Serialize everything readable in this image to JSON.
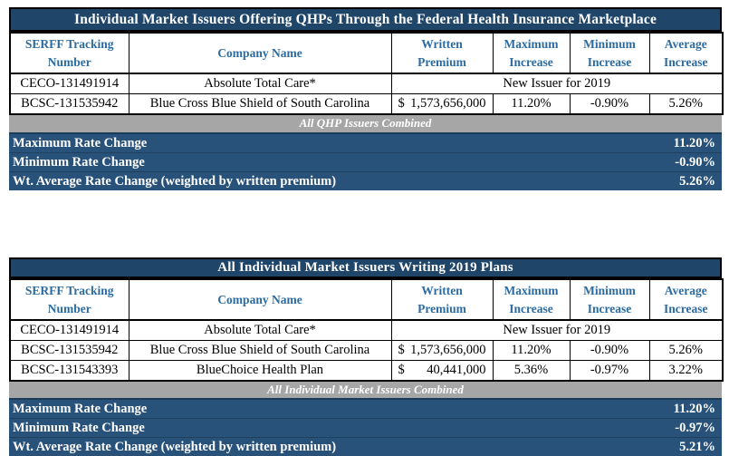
{
  "colors": {
    "title_bar_bg": "#1F4568",
    "header_text": "#2C6BA0",
    "combined_band_bg": "#A6A6A6",
    "summary_bg": "#29527A",
    "border": "#000000",
    "text_on_dark": "#FFFFFF"
  },
  "table1": {
    "title": "Individual Market Issuers Offering QHPs Through the Federal Health Insurance Marketplace",
    "headers": {
      "serff_l1": "SERFF Tracking",
      "serff_l2": "Number",
      "company": "Company Name",
      "premium_l1": "Written",
      "premium_l2": "Premium",
      "max_l1": "Maximum",
      "max_l2": "Increase",
      "min_l1": "Minimum",
      "min_l2": "Increase",
      "avg_l1": "Average",
      "avg_l2": "Increase"
    },
    "rows": [
      {
        "serff": "CECO-131491914",
        "company": "Absolute Total Care*",
        "note": "New Issuer for 2019"
      },
      {
        "serff": "BCSC-131535942",
        "company": "Blue Cross Blue Shield of South Carolina",
        "premium_symbol": "$",
        "premium_amount": "1,573,656,000",
        "max": "11.20%",
        "min": "-0.90%",
        "avg": "5.26%"
      }
    ],
    "combined_band": "All QHP Issuers Combined",
    "summary": [
      {
        "label": "Maximum Rate Change",
        "value": "11.20%"
      },
      {
        "label": "Minimum Rate Change",
        "value": "-0.90%"
      },
      {
        "label": "Wt. Average Rate Change (weighted by written premium)",
        "value": "5.26%"
      }
    ]
  },
  "table2": {
    "title": "All Individual Market Issuers Writing 2019 Plans",
    "headers": {
      "serff_l1": "SERFF Tracking",
      "serff_l2": "Number",
      "company": "Company Name",
      "premium_l1": "Written",
      "premium_l2": "Premium",
      "max_l1": "Maximum",
      "max_l2": "Increase",
      "min_l1": "Minimum",
      "min_l2": "Increase",
      "avg_l1": "Average",
      "avg_l2": "Increase"
    },
    "rows": [
      {
        "serff": "CECO-131491914",
        "company": "Absolute Total Care*",
        "note": "New Issuer for 2019"
      },
      {
        "serff": "BCSC-131535942",
        "company": "Blue Cross Blue Shield of South Carolina",
        "premium_symbol": "$",
        "premium_amount": "1,573,656,000",
        "max": "11.20%",
        "min": "-0.90%",
        "avg": "5.26%"
      },
      {
        "serff": "BCSC-131543393",
        "company": "BlueChoice Health Plan",
        "premium_symbol": "$",
        "premium_amount": "40,441,000",
        "max": "5.36%",
        "min": "-0.97%",
        "avg": "3.22%"
      }
    ],
    "combined_band": "All Individual Market Issuers Combined",
    "summary": [
      {
        "label": "Maximum Rate Change",
        "value": "11.20%"
      },
      {
        "label": "Minimum Rate Change",
        "value": "-0.97%"
      },
      {
        "label": "Wt. Average Rate Change (weighted by written premium)",
        "value": "5.21%"
      }
    ]
  }
}
